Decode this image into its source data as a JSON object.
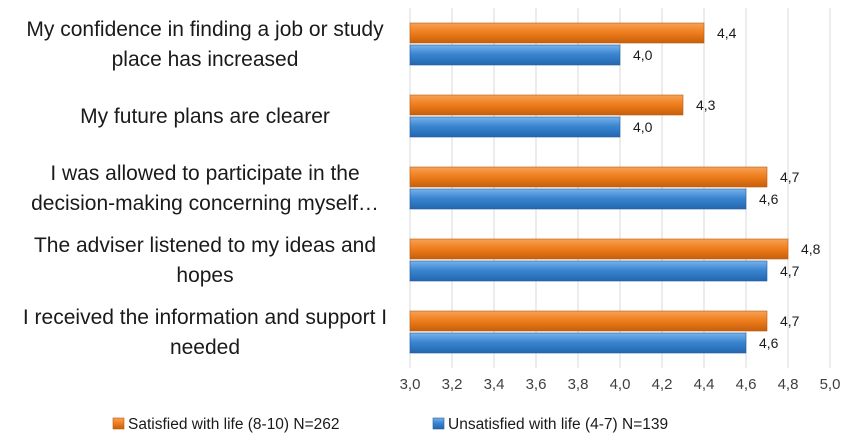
{
  "chart_data": {
    "type": "bar",
    "orientation": "horizontal",
    "categories": [
      [
        "My confidence in finding a job or study",
        "place has increased"
      ],
      [
        "My future plans are clearer"
      ],
      [
        "I was allowed to participate in the",
        "decision-making concerning myself…"
      ],
      [
        "The adviser listened to my ideas and",
        "hopes"
      ],
      [
        "I received the information and support I",
        "needed"
      ]
    ],
    "series": [
      {
        "name": "Satisfied with life (8-10) N=262",
        "color": "#F07F1F",
        "values": [
          4.4,
          4.3,
          4.7,
          4.8,
          4.7
        ],
        "labels": [
          "4,4",
          "4,3",
          "4,7",
          "4,8",
          "4,7"
        ]
      },
      {
        "name": "Unsatisfied with life (4-7) N=139",
        "color": "#3B86D2",
        "values": [
          4.0,
          4.0,
          4.6,
          4.7,
          4.6
        ],
        "labels": [
          "4,0",
          "4,0",
          "4,6",
          "4,7",
          "4,6"
        ]
      }
    ],
    "xlim": [
      3.0,
      5.0
    ],
    "xticks": [
      "3,0",
      "3,2",
      "3,4",
      "3,6",
      "3,8",
      "4,0",
      "4,2",
      "4,4",
      "4,6",
      "4,8",
      "5,0"
    ],
    "grid": "vertical",
    "legend": "bottom"
  }
}
